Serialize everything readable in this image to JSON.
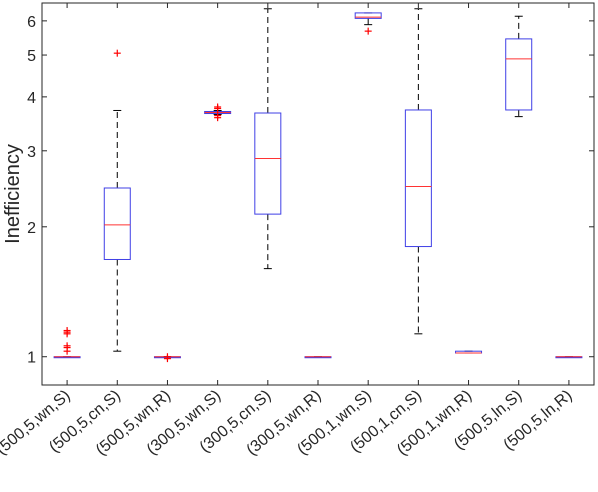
{
  "chart_data": {
    "type": "boxplot",
    "ylabel": "Inefficiency",
    "xlabel": "",
    "yscale": "log",
    "ylim": [
      0.86,
      6.6
    ],
    "yticks": [
      1,
      2,
      3,
      4,
      5,
      6
    ],
    "categories": [
      "(500,5,wn,S)",
      "(500,5,cn,S)",
      "(500,5,wn,R)",
      "(300,5,wn,S)",
      "(300,5,cn,S)",
      "(300,5,wn,R)",
      "(500,1,wn,S)",
      "(500,1,cn,S)",
      "(500,1,wn,R)",
      "(500,5,ln,S)",
      "(500,5,ln,R)"
    ],
    "boxes": [
      {
        "whisker_low": 1.0,
        "q1": 1.0,
        "median": 1.0,
        "q3": 1.0,
        "whisker_high": 1.0,
        "outliers": [
          1.03,
          1.05,
          1.06,
          1.13,
          1.14,
          1.15
        ]
      },
      {
        "whisker_low": 1.03,
        "q1": 1.68,
        "median": 2.02,
        "q3": 2.46,
        "whisker_high": 3.72,
        "outliers": [
          5.05
        ]
      },
      {
        "whisker_low": 1.0,
        "q1": 1.0,
        "median": 1.0,
        "q3": 1.0,
        "whisker_high": 1.0,
        "outliers": [
          0.99,
          1.0
        ]
      },
      {
        "whisker_low": 3.64,
        "q1": 3.66,
        "median": 3.68,
        "q3": 3.7,
        "whisker_high": 3.72,
        "outliers": [
          3.58,
          3.62,
          3.76,
          3.79
        ]
      },
      {
        "whisker_low": 1.6,
        "q1": 2.14,
        "median": 2.88,
        "q3": 3.67,
        "whisker_high": 6.4,
        "outliers": []
      },
      {
        "whisker_low": 1.0,
        "q1": 1.0,
        "median": 1.0,
        "q3": 1.0,
        "whisker_high": 1.0,
        "outliers": []
      },
      {
        "whisker_low": 5.88,
        "q1": 6.08,
        "median": 6.12,
        "q3": 6.26,
        "whisker_high": 6.26,
        "outliers": [
          5.68
        ]
      },
      {
        "whisker_low": 1.13,
        "q1": 1.8,
        "median": 2.48,
        "q3": 3.73,
        "whisker_high": 6.4,
        "outliers": []
      },
      {
        "whisker_low": 1.02,
        "q1": 1.02,
        "median": 1.02,
        "q3": 1.03,
        "whisker_high": 1.03,
        "outliers": []
      },
      {
        "whisker_low": 3.6,
        "q1": 3.73,
        "median": 4.9,
        "q3": 5.45,
        "whisker_high": 6.15,
        "outliers": []
      },
      {
        "whisker_low": 1.0,
        "q1": 1.0,
        "median": 1.0,
        "q3": 1.0,
        "whisker_high": 1.0,
        "outliers": []
      }
    ],
    "grid": false,
    "legend": "none",
    "colors": {
      "box": "#3f3fe6",
      "median": "#ff3333",
      "whisker": "#000000",
      "outlier": "#ff0000",
      "axis": "#262626"
    }
  }
}
